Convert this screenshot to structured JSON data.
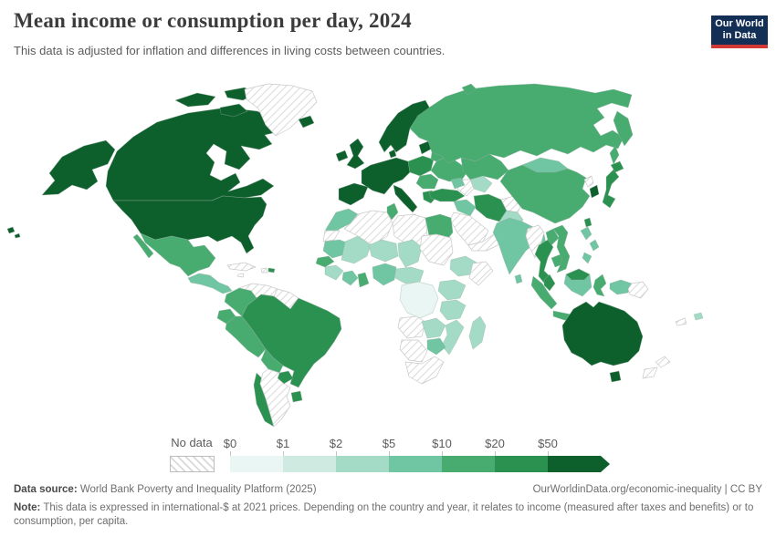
{
  "header": {
    "title": "Mean income or consumption per day, 2024",
    "subtitle": "This data is adjusted for inflation and differences in living costs between countries.",
    "logo": {
      "line1": "Our World",
      "line2": "in Data",
      "bg_color": "#142f56",
      "accent_color": "#d13a34"
    }
  },
  "legend": {
    "no_data_label": "No data",
    "tick_labels": [
      "$0",
      "$1",
      "$2",
      "$5",
      "$10",
      "$20",
      "$50"
    ]
  },
  "footer": {
    "source_label": "Data source:",
    "source_text": " World Bank Poverty and Inequality Platform (2025)",
    "link_text": "OurWorldinData.org/economic-inequality | CC BY",
    "note_label": "Note:",
    "note_text": " This data is expressed in international-$ at 2021 prices. Depending on the country and year, it relates to income (measured after taxes and benefits) or to consumption, per capita."
  },
  "chart_data": {
    "type": "choropleth",
    "title": "Mean income or consumption per day, 2024",
    "unit": "international-$ per person per day, 2021 prices",
    "legend_position": "bottom",
    "legend_bins": [
      {
        "label": "$0-$1",
        "color": "#e9f6f3"
      },
      {
        "label": "$1-$2",
        "color": "#cfeae1"
      },
      {
        "label": "$2-$5",
        "color": "#a4dbc7"
      },
      {
        "label": "$5-$10",
        "color": "#70c5a3"
      },
      {
        "label": "$10-$20",
        "color": "#48ac71"
      },
      {
        "label": "$20-$50",
        "color": "#2b9150"
      },
      {
        "label": "$50+",
        "color": "#0d5f2c"
      }
    ],
    "no_data": {
      "label": "No data",
      "value": -1,
      "pattern": "diagonal-hatch",
      "stripe_color": "#d9d9d9"
    },
    "regions": {
      "canada": 6,
      "alaska": 6,
      "arctic-islands": 6,
      "united-states": 6,
      "hawaii": 6,
      "greenland": -1,
      "iceland": 6,
      "mexico": 4,
      "central-america": 3,
      "cuba": -1,
      "haiti": -1,
      "dominican-republic": 5,
      "jamaica": -1,
      "colombia": 4,
      "venezuela": -1,
      "guyanas": -1,
      "ecuador": 4,
      "peru": 4,
      "brazil": 5,
      "bolivia": 4,
      "paraguay": 5,
      "uruguay": 5,
      "argentina": -1,
      "chile": 5,
      "ireland": 6,
      "united-kingdom": 6,
      "norway-sweden": 6,
      "finland": 6,
      "denmark": 6,
      "western-europe": 6,
      "iberia": 6,
      "italy": 6,
      "poland-central-europe": 5,
      "baltics": 6,
      "belarus": 4,
      "ukraine": 4,
      "balkans": 4,
      "greece": 5,
      "russia": 4,
      "kamchatka": 4,
      "sakhalin": 4,
      "novaya-zemlya": 4,
      "kazakhstan": 4,
      "uzbekistan": 2,
      "turkmenistan": -1,
      "caucasus": 3,
      "turkey": 5,
      "syria-iraq": 3,
      "iran": 5,
      "afghanistan": -1,
      "pakistan": 2,
      "saudi-arabia": -1,
      "yemen-oman": -1,
      "morocco": 3,
      "western-sahara": -1,
      "algeria": -1,
      "tunisia": 4,
      "libya": -1,
      "egypt": 4,
      "mauritania": 3,
      "senegal": 4,
      "mali": 2,
      "niger": 2,
      "chad": 2,
      "sudan": -1,
      "guinea": 2,
      "ivory-coast": 3,
      "ghana": 4,
      "nigeria": 3,
      "cameroon-car": 2,
      "ethiopia": 2,
      "somalia": -1,
      "uganda-kenya": 2,
      "dr-congo": 0,
      "tanzania": 2,
      "angola": -1,
      "zambia": 2,
      "mozambique": 2,
      "zimbabwe": 3,
      "namibia-botswana": -1,
      "south-africa": -1,
      "madagascar": 2,
      "india": 3,
      "sri-lanka": 3,
      "bangladesh": 3,
      "china": 4,
      "mongolia": 3,
      "north-korea": -1,
      "south-korea": 6,
      "japan": 5,
      "taiwan": 5,
      "myanmar": -1,
      "thailand": 5,
      "laos": 4,
      "cambodia": 4,
      "vietnam": 4,
      "malaysia-peninsula": 5,
      "sumatra": 4,
      "java": 4,
      "borneo": 3,
      "borneo-malaysia": 5,
      "sulawesi": 4,
      "west-papua": 3,
      "papua-new-guinea": -1,
      "philippines": 3,
      "australia": 6,
      "tasmania": 6,
      "new-zealand": -1,
      "fiji": 2,
      "new-caledonia": -1
    }
  }
}
